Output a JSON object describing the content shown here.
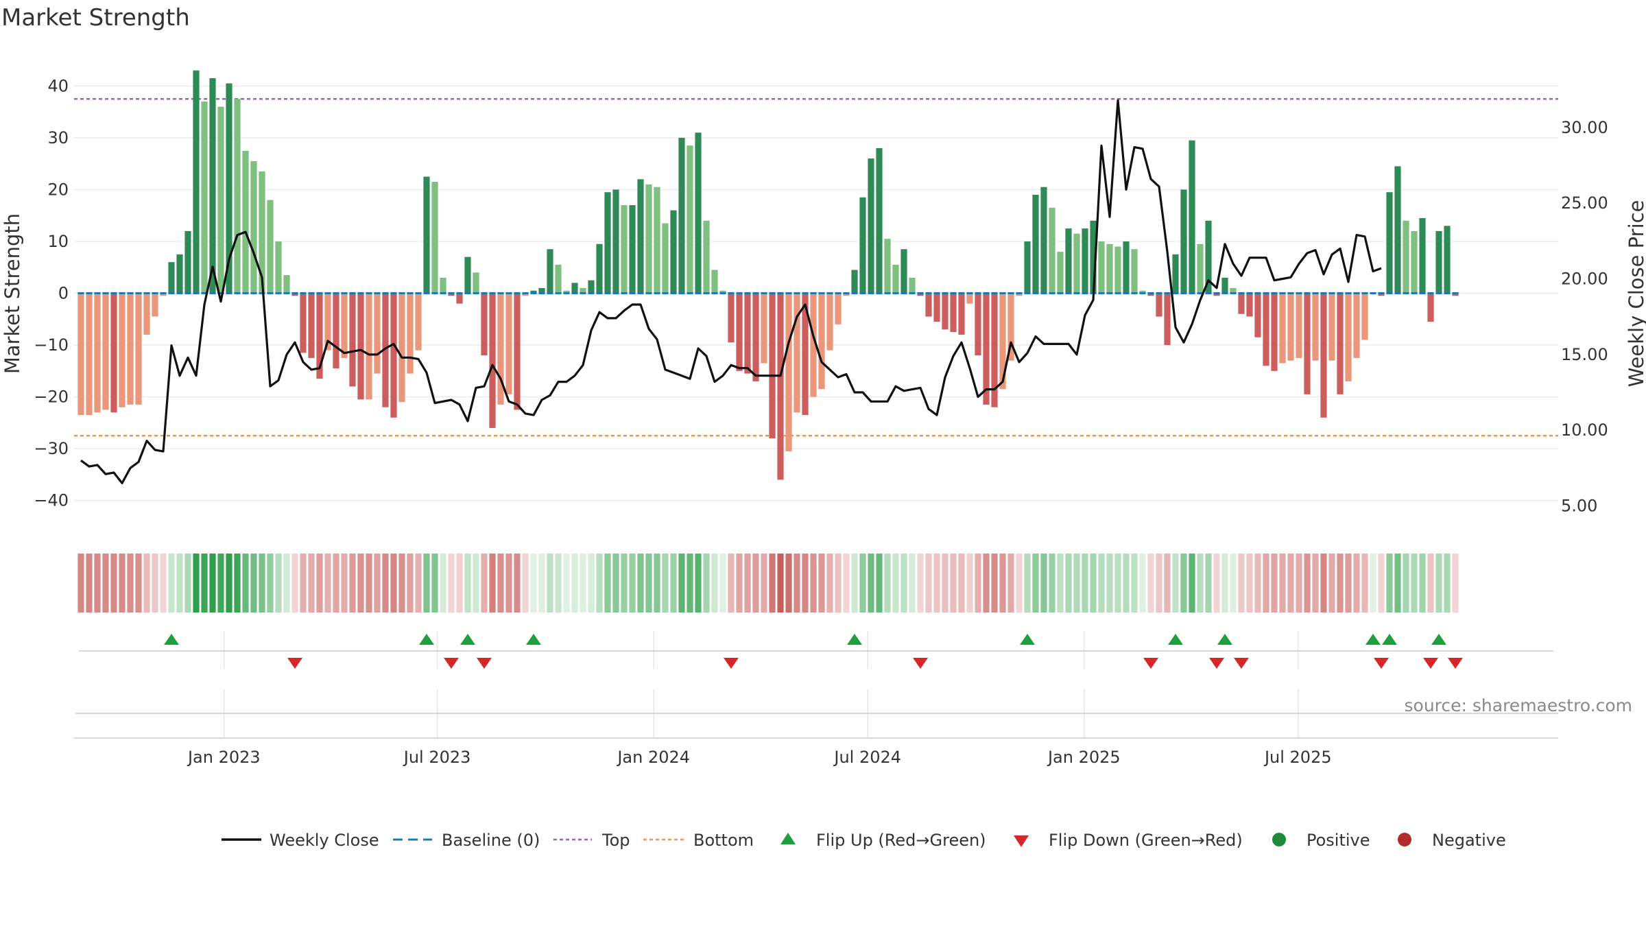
{
  "title": "Market Strength",
  "source": "source: sharemaestro.com",
  "colors": {
    "positive": "#1e8a3c",
    "negative": "#b52a2a",
    "posStrong": "#2e8b57",
    "posLight": "#7fbf7f",
    "negStrong": "#cd5c5c",
    "negLight": "#e9967a",
    "price": "#111111",
    "baseline": "#1f77b4",
    "top": "#9467bd",
    "bottom": "#e39a55",
    "flipUp": "#1f9e3e",
    "flipDown": "#d62728"
  },
  "chart_data": {
    "type": "bar",
    "title": "Market Strength",
    "ylabel": "Market Strength",
    "y2label": "Weekly Close Price",
    "ylim": [
      -46,
      46
    ],
    "y2lim": [
      3.3,
      34.8
    ],
    "yticks": [
      -40,
      -30,
      -20,
      -10,
      0,
      10,
      20,
      30,
      40
    ],
    "y2ticks": [
      5,
      10,
      15,
      20,
      25,
      30
    ],
    "y2tick_labels": [
      "5.00",
      "10.00",
      "15.00",
      "20.00",
      "25.00",
      "30.00"
    ],
    "top_threshold": 37.5,
    "bottom_threshold": -27.5,
    "x_start_week_index_note": "weeks from 2022-09-05",
    "xtick_labels": [
      "Jan 2023",
      "Jul 2023",
      "Jan 2024",
      "Jul 2024",
      "Jan 2025",
      "Jul 2025"
    ],
    "xtick_weeks": [
      17.4,
      43.3,
      69.6,
      95.6,
      121.9,
      147.9
    ],
    "strength": [
      -23.5,
      -23.5,
      -23,
      -22.5,
      -23,
      -22,
      -21.5,
      -21.5,
      -8,
      -4.5,
      -0.5,
      6,
      7.5,
      12,
      43,
      37,
      41.5,
      36,
      40.5,
      37.5,
      27.5,
      25.5,
      23.5,
      18,
      10,
      3.5,
      -0.5,
      -11.5,
      -12.5,
      -16.5,
      -11,
      -14.5,
      -12.5,
      -18,
      -20.5,
      -20.5,
      -15.5,
      -22,
      -24,
      -21,
      -15.5,
      -11,
      22.5,
      21.5,
      3,
      -0.5,
      -2,
      7,
      4,
      -12,
      -26,
      -21.5,
      -19.5,
      -22.5,
      -0.5,
      0.5,
      1,
      8.5,
      5.5,
      0.5,
      2,
      1,
      2.5,
      9.5,
      19.5,
      20,
      17,
      17,
      22,
      21,
      20.5,
      13.5,
      16,
      30,
      28.5,
      31,
      14,
      4.5,
      0.5,
      -9.5,
      -15,
      -15.5,
      -17,
      -13.5,
      -28,
      -36,
      -30.5,
      -23,
      -23.5,
      -20,
      -18.5,
      -11,
      -6,
      -0.5,
      4.5,
      18.5,
      26,
      28,
      10.5,
      5.5,
      8.5,
      3,
      -0.5,
      -4.5,
      -5.5,
      -7,
      -7.5,
      -8,
      -2,
      -12,
      -21.5,
      -22,
      -18.5,
      -13,
      -0.5,
      10,
      19,
      20.5,
      16.5,
      8,
      12.5,
      11.5,
      12.5,
      14,
      10,
      9.5,
      9,
      10,
      8.5,
      0.5,
      -0.5,
      -4.5,
      -10,
      7.5,
      20,
      29.5,
      9.5,
      14,
      -0.5,
      3,
      1,
      -4,
      -4.5,
      -8.5,
      -14,
      -15,
      -13.5,
      -13,
      -12.5,
      -19.5,
      -13,
      -24,
      -13,
      -19.5,
      -17,
      -12.5,
      -9,
      0,
      -0.5,
      19.5,
      24.5,
      14,
      12,
      14.5,
      -5.5,
      12,
      13,
      -0.5
    ],
    "close": [
      8,
      7.6,
      7.7,
      7.1,
      7.2,
      6.5,
      7.5,
      7.9,
      9.3,
      8.7,
      8.6,
      15.6,
      13.6,
      14.8,
      13.6,
      18.3,
      20.8,
      18.5,
      21.3,
      22.9,
      23.1,
      21.7,
      20.1,
      12.9,
      13.3,
      15,
      15.8,
      14.5,
      14,
      14.1,
      15.9,
      15.5,
      15.1,
      15.2,
      15.3,
      15,
      15,
      15.4,
      15.7,
      14.8,
      14.8,
      14.7,
      13.8,
      11.8,
      11.9,
      12,
      11.7,
      10.6,
      12.8,
      12.9,
      14.3,
      13.4,
      11.9,
      11.7,
      11.1,
      11,
      12,
      12.3,
      13.2,
      13.2,
      13.6,
      14.3,
      16.6,
      17.8,
      17.4,
      17.4,
      17.9,
      18.3,
      18.3,
      16.7,
      16,
      14,
      13.8,
      13.6,
      13.4,
      15.4,
      14.9,
      13.2,
      13.6,
      14.3,
      14.1,
      14.1,
      13.6,
      13.6,
      13.6,
      13.6,
      15.8,
      17.5,
      18.3,
      16.2,
      14.5,
      14,
      13.5,
      13.7,
      12.5,
      12.5,
      11.9,
      11.9,
      11.9,
      12.9,
      12.6,
      12.7,
      12.8,
      11.4,
      11,
      13.5,
      14.9,
      15.8,
      14.1,
      12.2,
      12.7,
      12.7,
      13.2,
      15.8,
      14.5,
      15.1,
      16.2,
      15.7,
      15.7,
      15.7,
      15.7,
      15,
      17.6,
      18.6,
      28.8,
      24.1,
      31.8,
      25.9,
      28.7,
      28.6,
      26.6,
      26.1,
      21.8,
      16.8,
      15.8,
      17,
      18.6,
      19.9,
      19.4,
      22.3,
      21,
      20.2,
      21.4,
      21.4,
      21.4,
      19.9,
      20,
      20.1,
      21,
      21.7,
      21.9,
      20.3,
      21.6,
      22,
      19.8,
      22.9,
      22.8,
      20.5,
      20.7
    ]
  },
  "legend": {
    "items": [
      "Weekly Close",
      "Baseline (0)",
      "Top",
      "Bottom",
      "Flip Up (Red→Green)",
      "Flip Down (Green→Red)",
      "Positive",
      "Negative"
    ]
  }
}
